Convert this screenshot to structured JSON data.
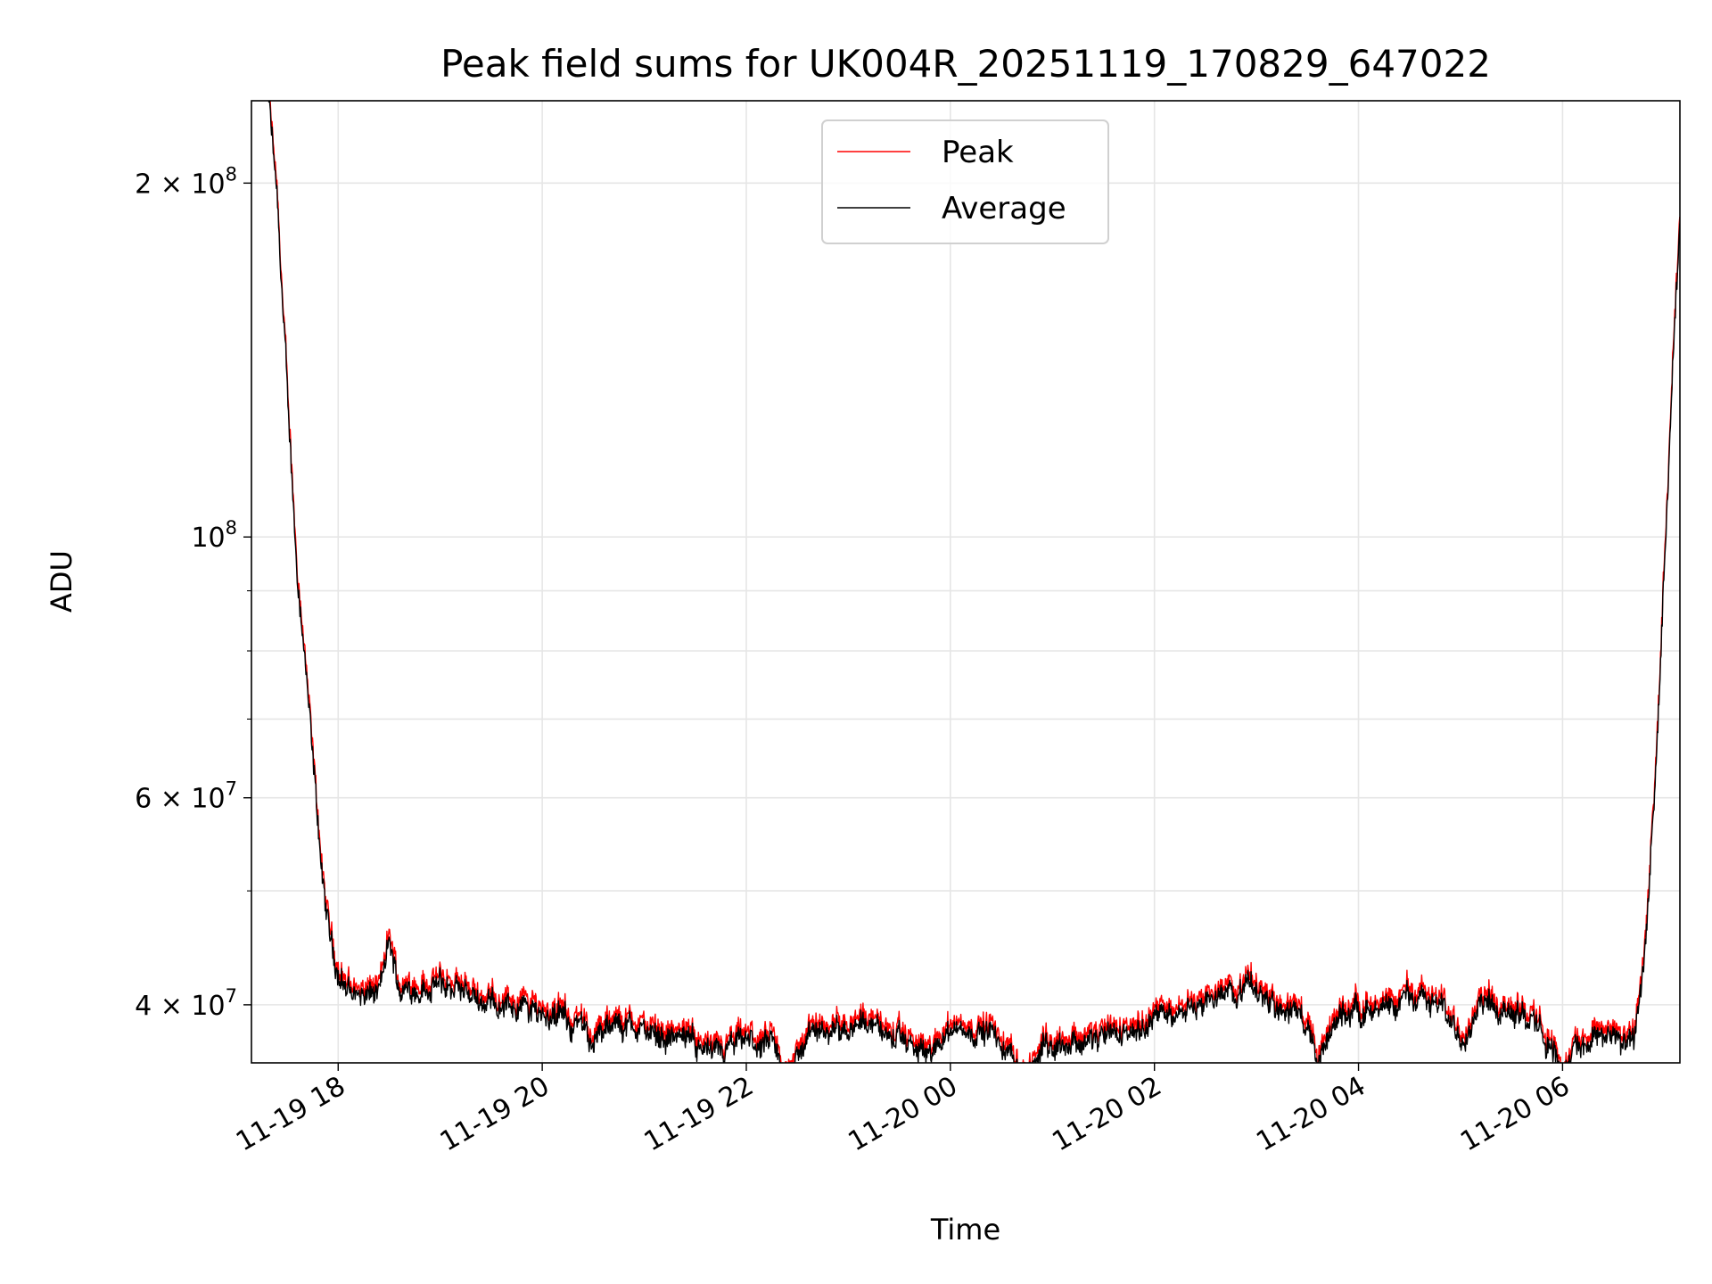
{
  "chart_data": {
    "type": "line",
    "title": "Peak field sums for UK004R_20251119_170829_647022",
    "xlabel": "Time",
    "ylabel": "ADU",
    "yscale": "log",
    "ylim": [
      35700000,
      235000000
    ],
    "xlim_hours": [
      17.15,
      31.15
    ],
    "x_unit": "hours since 2025-11-19 00:00",
    "grid": true,
    "legend": {
      "placement": "upper-center",
      "entries": [
        "Peak",
        "Average"
      ]
    },
    "x_ticks": [
      {
        "hour": 18,
        "label": "11-19 18"
      },
      {
        "hour": 20,
        "label": "11-19 20"
      },
      {
        "hour": 22,
        "label": "11-19 22"
      },
      {
        "hour": 24,
        "label": "11-20 00"
      },
      {
        "hour": 26,
        "label": "11-20 02"
      },
      {
        "hour": 28,
        "label": "11-20 04"
      },
      {
        "hour": 30,
        "label": "11-20 06"
      }
    ],
    "y_ticks": [
      {
        "value": 200000000,
        "base": "2 × 10",
        "exp": "8"
      },
      {
        "value": 100000000,
        "base": "10",
        "exp": "8"
      },
      {
        "value": 60000000,
        "base": "6 × 10",
        "exp": "7"
      },
      {
        "value": 40000000,
        "base": "4 × 10",
        "exp": "7"
      }
    ],
    "y_minor_ticks": [
      50000000,
      70000000,
      80000000,
      90000000
    ],
    "series": [
      {
        "name": "Peak",
        "color": "#ff0000",
        "ratio_to_average": 1.015
      },
      {
        "name": "Average",
        "color": "#000000",
        "hours": [
          17.32,
          17.4,
          17.51,
          17.6,
          17.66,
          17.76,
          17.87,
          17.97,
          18.08,
          18.3,
          18.4,
          18.5,
          18.6,
          19.0,
          19.5,
          20.0,
          20.3,
          20.5,
          20.8,
          21.0,
          21.5,
          21.7,
          22.0,
          22.3,
          22.35,
          22.6,
          23.0,
          23.2,
          23.4,
          23.8,
          24.0,
          24.4,
          24.6,
          24.75,
          24.9,
          25.2,
          25.6,
          26.0,
          26.4,
          26.9,
          27.2,
          27.5,
          27.6,
          27.8,
          28.0,
          28.3,
          28.5,
          28.8,
          29.0,
          29.2,
          29.6,
          29.9,
          30.0,
          30.1,
          30.5,
          30.6,
          30.7,
          30.8,
          30.9,
          31.0,
          31.05,
          31.15,
          31.25
        ],
        "values_1e7": [
          23.5,
          19.4,
          12.8,
          9.3,
          8.15,
          6.28,
          4.84,
          4.34,
          4.12,
          4.05,
          4.1,
          4.5,
          4.12,
          4.15,
          4.02,
          3.95,
          3.85,
          3.75,
          3.85,
          3.8,
          3.72,
          3.6,
          3.72,
          3.65,
          3.45,
          3.75,
          3.85,
          3.9,
          3.75,
          3.62,
          3.82,
          3.78,
          3.6,
          3.45,
          3.7,
          3.72,
          3.75,
          3.9,
          4.0,
          4.15,
          4.05,
          3.85,
          3.55,
          3.9,
          4.0,
          3.9,
          4.1,
          4.0,
          3.75,
          4.05,
          3.95,
          3.7,
          3.45,
          3.7,
          3.8,
          3.7,
          3.7,
          4.4,
          6.0,
          9.3,
          12.0,
          18.5,
          23.5
        ]
      }
    ]
  }
}
